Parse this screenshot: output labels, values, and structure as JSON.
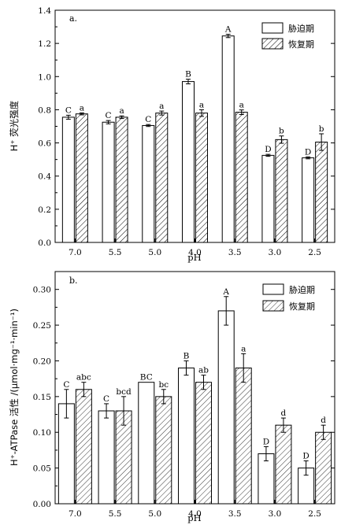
{
  "chart_data": [
    {
      "type": "bar",
      "panel_label": "a.",
      "xlabel": "pH",
      "ylabel": "H⁺ 荧光强度",
      "categories": [
        "7.0",
        "5.5",
        "5.0",
        "4.0",
        "3.5",
        "3.0",
        "2.5"
      ],
      "ylim": [
        0.0,
        1.4
      ],
      "yticks": [
        0.0,
        0.2,
        0.4,
        0.6,
        0.8,
        1.0,
        1.2,
        1.4
      ],
      "ytick_labels": [
        "0.0",
        "0.2",
        "0.4",
        "0.6",
        "0.8",
        "1.0",
        "1.2",
        "1.4"
      ],
      "legend_position": "top-right",
      "series": [
        {
          "name": "胁迫期",
          "pattern": "empty",
          "values": [
            0.755,
            0.725,
            0.705,
            0.97,
            1.245,
            0.525,
            0.51
          ],
          "errors": [
            0.012,
            0.01,
            0.006,
            0.014,
            0.01,
            0.006,
            0.006
          ],
          "labels": [
            "C",
            "C",
            "C",
            "B",
            "A",
            "D",
            "D"
          ]
        },
        {
          "name": "恢复期",
          "pattern": "hatched",
          "values": [
            0.775,
            0.755,
            0.78,
            0.78,
            0.785,
            0.62,
            0.605
          ],
          "errors": [
            0.006,
            0.008,
            0.012,
            0.02,
            0.014,
            0.022,
            0.05
          ],
          "labels": [
            "a",
            "a",
            "a",
            "a",
            "a",
            "b",
            "b"
          ]
        }
      ]
    },
    {
      "type": "bar",
      "panel_label": "b.",
      "xlabel": "pH",
      "ylabel": "H⁺-ATPase 活性 /(μmol·mg⁻¹·min⁻¹)",
      "categories": [
        "7.0",
        "5.5",
        "5.0",
        "4.0",
        "3.5",
        "3.0",
        "2.5"
      ],
      "ylim": [
        0.0,
        0.325
      ],
      "yticks": [
        0.0,
        0.05,
        0.1,
        0.15,
        0.2,
        0.25,
        0.3
      ],
      "ytick_labels": [
        "0.00",
        "0.05",
        "0.10",
        "0.15",
        "0.20",
        "0.25",
        "0.30"
      ],
      "legend_position": "top-right",
      "series": [
        {
          "name": "胁迫期",
          "pattern": "empty",
          "values": [
            0.14,
            0.13,
            0.17,
            0.19,
            0.27,
            0.07,
            0.05
          ],
          "errors": [
            0.02,
            0.01,
            0.0,
            0.01,
            0.02,
            0.01,
            0.01
          ],
          "labels": [
            "C",
            "C",
            "BC",
            "B",
            "A",
            "D",
            "D"
          ]
        },
        {
          "name": "恢复期",
          "pattern": "hatched",
          "values": [
            0.16,
            0.13,
            0.15,
            0.17,
            0.19,
            0.11,
            0.1
          ],
          "errors": [
            0.01,
            0.02,
            0.01,
            0.01,
            0.02,
            0.01,
            0.01
          ],
          "labels": [
            "abc",
            "bcd",
            "bc",
            "ab",
            "a",
            "d",
            "d"
          ]
        }
      ]
    }
  ]
}
